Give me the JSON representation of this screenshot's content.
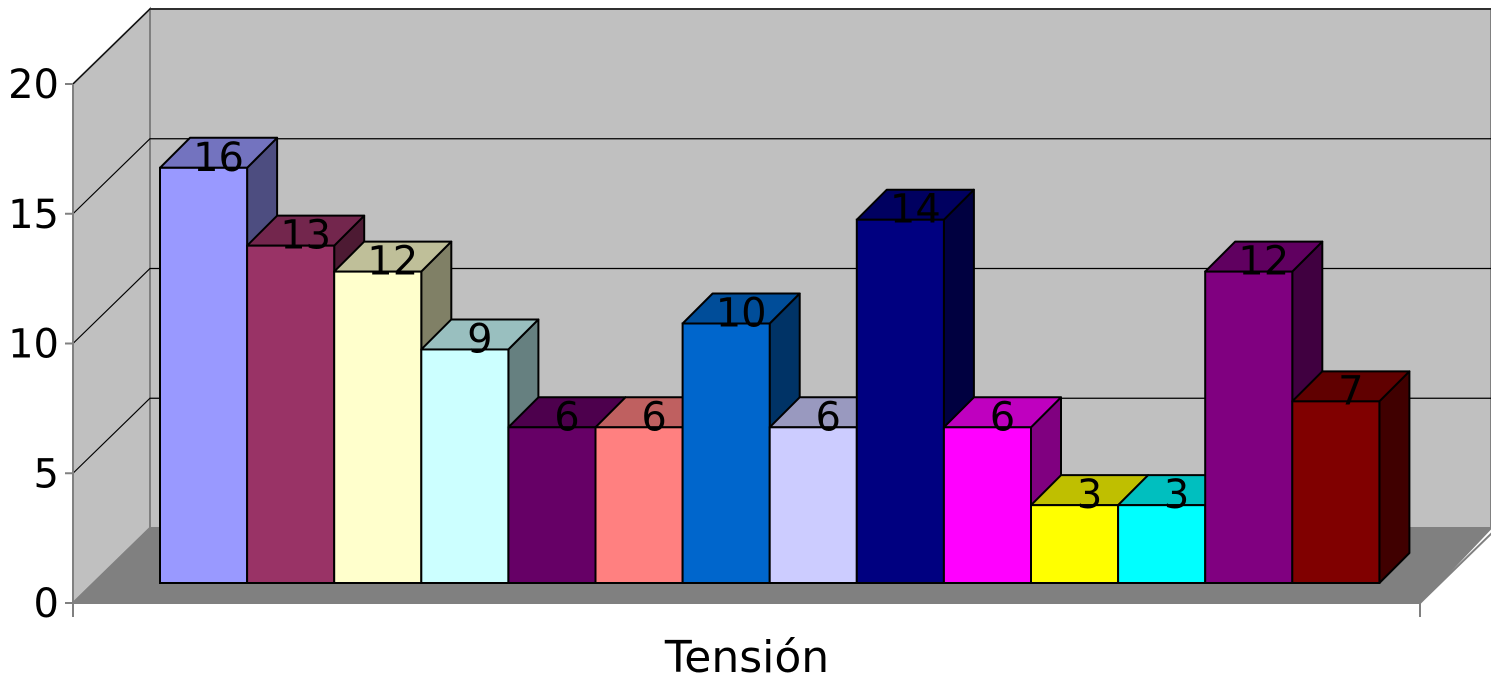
{
  "chart_data": {
    "type": "bar",
    "style": "3d-clustered-column",
    "categories": [
      "",
      "",
      "",
      "",
      "",
      "",
      "",
      "",
      "",
      "",
      "",
      "",
      "",
      ""
    ],
    "values": [
      16,
      13,
      12,
      9,
      6,
      6,
      10,
      6,
      14,
      6,
      3,
      3,
      12,
      7
    ],
    "data_labels": [
      "16",
      "13",
      "12",
      "9",
      "6",
      "6",
      "10",
      "6",
      "14",
      "6",
      "3",
      "3",
      "12",
      "7"
    ],
    "bar_colors": [
      "#9999ff",
      "#993366",
      "#ffffcc",
      "#ccffff",
      "#660066",
      "#ff8080",
      "#0066cc",
      "#ccccff",
      "#000080",
      "#ff00ff",
      "#ffff00",
      "#00ffff",
      "#800080",
      "#800000"
    ],
    "xlabel": "Tensión",
    "ylabel": "",
    "ylim": [
      0,
      20
    ],
    "yticks": [
      "0",
      "5",
      "10",
      "15",
      "20"
    ],
    "grid": true,
    "legend": "none",
    "wall_color": "#c0c0c0",
    "floor_color": "#808080"
  }
}
